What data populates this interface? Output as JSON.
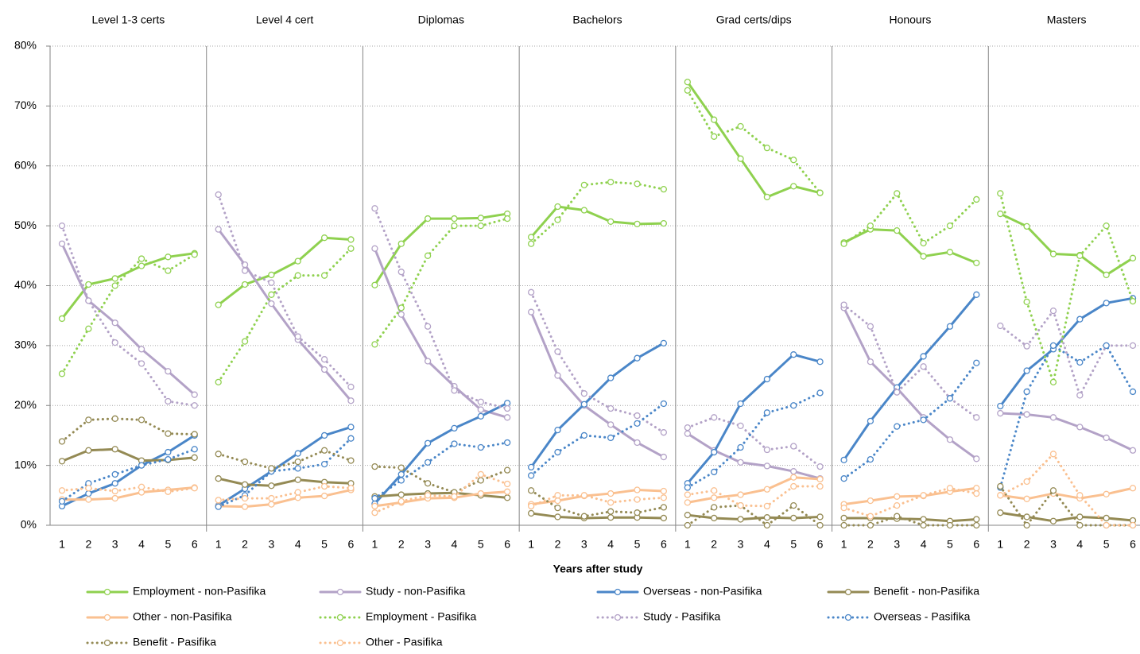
{
  "chart_data": {
    "type": "line",
    "x_label": "Years after study",
    "x": [
      1,
      2,
      3,
      4,
      5,
      6
    ],
    "ylim": [
      0,
      80
    ],
    "yticks": [
      {
        "value": 0,
        "label": "0%"
      },
      {
        "value": 10,
        "label": "10%"
      },
      {
        "value": 20,
        "label": "20%"
      },
      {
        "value": 30,
        "label": "30%"
      },
      {
        "value": 40,
        "label": "40%"
      },
      {
        "value": 50,
        "label": "50%"
      },
      {
        "value": 60,
        "label": "60%"
      },
      {
        "value": 70,
        "label": "70%"
      },
      {
        "value": 80,
        "label": "80%"
      }
    ],
    "grid": true,
    "series": [
      {
        "name": "Employment - non-Pasifika",
        "color": "#8fd14f",
        "style": "solid"
      },
      {
        "name": "Study - non-Pasifika",
        "color": "#b3a2c7",
        "style": "solid"
      },
      {
        "name": "Overseas - non-Pasifika",
        "color": "#4a86c8",
        "style": "solid"
      },
      {
        "name": "Benefit - non-Pasifika",
        "color": "#948a54",
        "style": "solid"
      },
      {
        "name": "Other - non-Pasifika",
        "color": "#fac090",
        "style": "solid"
      },
      {
        "name": "Employment - Pasifika",
        "color": "#8fd14f",
        "style": "dotted"
      },
      {
        "name": "Study - Pasifika",
        "color": "#b3a2c7",
        "style": "dotted"
      },
      {
        "name": "Overseas - Pasifika",
        "color": "#4a86c8",
        "style": "dotted"
      },
      {
        "name": "Benefit - Pasifika",
        "color": "#948a54",
        "style": "dotted"
      },
      {
        "name": "Other - Pasifika",
        "color": "#fac090",
        "style": "dotted"
      }
    ],
    "panels": [
      {
        "title": "Level 1-3 certs",
        "series": [
          {
            "values": [
              34.5,
              40.2,
              41.2,
              43.3,
              44.8,
              45.4
            ]
          },
          {
            "values": [
              47,
              37.5,
              33.8,
              29.4,
              25.7,
              21.8
            ]
          },
          {
            "values": [
              3.2,
              5.3,
              7.0,
              10.0,
              12.2,
              15.0
            ]
          },
          {
            "values": [
              10.7,
              12.5,
              12.7,
              10.8,
              10.9,
              11.3
            ]
          },
          {
            "values": [
              4.3,
              4.3,
              4.5,
              5.5,
              5.9,
              6.3
            ]
          },
          {
            "values": [
              25.3,
              32.8,
              40.0,
              44.5,
              42.5,
              45.2
            ]
          },
          {
            "values": [
              50,
              37.5,
              30.5,
              27.0,
              20.7,
              20.0
            ]
          },
          {
            "values": [
              4.0,
              7.0,
              8.5,
              10.0,
              11.0,
              12.7
            ]
          },
          {
            "values": [
              14.0,
              17.6,
              17.8,
              17.6,
              15.3,
              15.2
            ]
          },
          {
            "values": [
              5.8,
              6.2,
              5.7,
              6.4,
              5.6,
              6.2
            ]
          }
        ]
      },
      {
        "title": "Level 4 cert",
        "series": [
          {
            "values": [
              36.8,
              40.2,
              41.8,
              44.1,
              48.0,
              47.7
            ]
          },
          {
            "values": [
              49.4,
              43.5,
              37.0,
              31.0,
              26.0,
              20.8
            ]
          },
          {
            "values": [
              3.3,
              6.1,
              9.0,
              12.0,
              15.0,
              16.4
            ]
          },
          {
            "values": [
              7.8,
              6.8,
              6.6,
              7.6,
              7.2,
              7.0
            ]
          },
          {
            "values": [
              3.2,
              3.1,
              3.5,
              4.6,
              4.9,
              5.9
            ]
          },
          {
            "values": [
              23.9,
              30.7,
              38.5,
              41.7,
              41.7,
              46.2
            ]
          },
          {
            "values": [
              55.2,
              42.5,
              40.5,
              31.5,
              27.7,
              23.1
            ]
          },
          {
            "values": [
              3.1,
              5.0,
              9.0,
              9.5,
              10.2,
              14.5
            ]
          },
          {
            "values": [
              11.9,
              10.6,
              9.5,
              10.6,
              12.5,
              10.8
            ]
          },
          {
            "values": [
              4.2,
              4.5,
              4.5,
              5.5,
              6.5,
              6.2
            ]
          }
        ]
      },
      {
        "title": "Diplomas",
        "series": [
          {
            "values": [
              40.1,
              47.0,
              51.2,
              51.2,
              51.3,
              52.0
            ]
          },
          {
            "values": [
              46.2,
              35.2,
              27.4,
              23.2,
              19.3,
              18.0
            ]
          },
          {
            "values": [
              3.6,
              8.5,
              13.7,
              16.2,
              18.2,
              20.4
            ]
          },
          {
            "values": [
              4.8,
              5.1,
              5.3,
              5.4,
              5.0,
              4.6
            ]
          },
          {
            "values": [
              3.2,
              3.8,
              4.5,
              4.6,
              5.3,
              5.6
            ]
          },
          {
            "values": [
              30.2,
              36.3,
              45.0,
              50.0,
              50.0,
              51.2
            ]
          },
          {
            "values": [
              52.9,
              42.3,
              33.2,
              22.5,
              20.6,
              19.5
            ]
          },
          {
            "values": [
              4.5,
              7.5,
              10.5,
              13.6,
              13.0,
              13.8
            ]
          },
          {
            "values": [
              9.8,
              9.6,
              7.0,
              5.5,
              7.5,
              9.2
            ]
          },
          {
            "values": [
              2.1,
              4.0,
              5.0,
              4.8,
              8.5,
              6.9
            ]
          }
        ]
      },
      {
        "title": "Bachelors",
        "series": [
          {
            "values": [
              48.1,
              53.2,
              52.6,
              50.7,
              50.3,
              50.4
            ]
          },
          {
            "values": [
              35.6,
              25.0,
              20.0,
              16.8,
              13.8,
              11.4
            ]
          },
          {
            "values": [
              9.7,
              15.9,
              20.2,
              24.6,
              27.9,
              30.4
            ]
          },
          {
            "values": [
              2.0,
              1.4,
              1.2,
              1.3,
              1.3,
              1.2
            ]
          },
          {
            "values": [
              3.5,
              4.1,
              4.9,
              5.3,
              5.9,
              5.7
            ]
          },
          {
            "values": [
              47.0,
              51.0,
              56.8,
              57.3,
              57.0,
              56.1
            ]
          },
          {
            "values": [
              38.9,
              29.0,
              22.0,
              19.5,
              18.3,
              15.5
            ]
          },
          {
            "values": [
              8.3,
              12.2,
              15.0,
              14.6,
              17.0,
              20.3
            ]
          },
          {
            "values": [
              5.8,
              2.9,
              1.5,
              2.3,
              2.1,
              3.0
            ]
          },
          {
            "values": [
              3.2,
              5.0,
              5.0,
              3.8,
              4.3,
              4.6
            ]
          }
        ]
      },
      {
        "title": "Grad certs/dips",
        "series": [
          {
            "values": [
              74.0,
              67.7,
              61.2,
              54.8,
              56.6,
              55.5
            ]
          },
          {
            "values": [
              15.3,
              12.5,
              10.5,
              9.9,
              9.0,
              7.8
            ]
          },
          {
            "values": [
              7.0,
              12.2,
              20.3,
              24.4,
              28.5,
              27.3
            ]
          },
          {
            "values": [
              1.7,
              1.2,
              1.0,
              1.3,
              1.2,
              1.4
            ]
          },
          {
            "values": [
              3.8,
              4.6,
              5.1,
              6.0,
              8.0,
              7.7
            ]
          },
          {
            "values": [
              72.6,
              64.9,
              66.6,
              63.0,
              61.0,
              55.5
            ]
          },
          {
            "values": [
              16.3,
              18.0,
              16.6,
              12.6,
              13.2,
              9.8
            ]
          },
          {
            "values": [
              6.3,
              8.9,
              13.0,
              18.8,
              20.0,
              22.1
            ]
          },
          {
            "values": [
              0,
              3.0,
              3.3,
              0,
              3.3,
              0
            ]
          },
          {
            "values": [
              5.1,
              5.8,
              3.3,
              3.2,
              6.5,
              6.5
            ]
          }
        ]
      },
      {
        "title": "Honours",
        "series": [
          {
            "values": [
              47.2,
              49.4,
              49.2,
              44.9,
              45.6,
              43.8
            ]
          },
          {
            "values": [
              36.3,
              27.3,
              22.9,
              18.0,
              14.3,
              11.1
            ]
          },
          {
            "values": [
              10.9,
              17.4,
              23.0,
              28.2,
              33.2,
              38.5
            ]
          },
          {
            "values": [
              1.2,
              1.2,
              1.1,
              1.0,
              0.7,
              1.0
            ]
          },
          {
            "values": [
              3.5,
              4.1,
              4.8,
              4.9,
              5.6,
              6.2
            ]
          },
          {
            "values": [
              47.0,
              50.0,
              55.4,
              47.1,
              50.0,
              54.4
            ]
          },
          {
            "values": [
              36.8,
              33.2,
              22.2,
              26.5,
              21.2,
              18.0
            ]
          },
          {
            "values": [
              7.8,
              11.0,
              16.5,
              17.6,
              21.2,
              27.1
            ]
          },
          {
            "values": [
              0,
              0,
              1.5,
              0,
              0,
              0
            ]
          },
          {
            "values": [
              2.9,
              1.5,
              3.3,
              5.0,
              6.2,
              5.3
            ]
          }
        ]
      },
      {
        "title": "Masters",
        "series": [
          {
            "values": [
              52.0,
              49.9,
              45.3,
              45.1,
              41.8,
              44.6
            ]
          },
          {
            "values": [
              18.7,
              18.5,
              18.0,
              16.4,
              14.6,
              12.5
            ]
          },
          {
            "values": [
              19.9,
              25.8,
              29.4,
              34.4,
              37.1,
              37.9
            ]
          },
          {
            "values": [
              2.1,
              1.4,
              0.7,
              1.4,
              1.2,
              0.8
            ]
          },
          {
            "values": [
              5.0,
              4.4,
              5.3,
              4.5,
              5.2,
              6.2
            ]
          },
          {
            "values": [
              55.4,
              37.3,
              23.9,
              45.0,
              50.0,
              37.4
            ]
          },
          {
            "values": [
              33.3,
              29.9,
              35.8,
              21.7,
              30.0,
              30.0
            ]
          },
          {
            "values": [
              6.3,
              22.3,
              30.0,
              27.2,
              30.0,
              22.3
            ]
          },
          {
            "values": [
              6.5,
              0,
              5.8,
              0,
              0,
              0
            ]
          },
          {
            "values": [
              5.0,
              7.3,
              11.9,
              5.0,
              0,
              0
            ]
          }
        ]
      }
    ]
  }
}
